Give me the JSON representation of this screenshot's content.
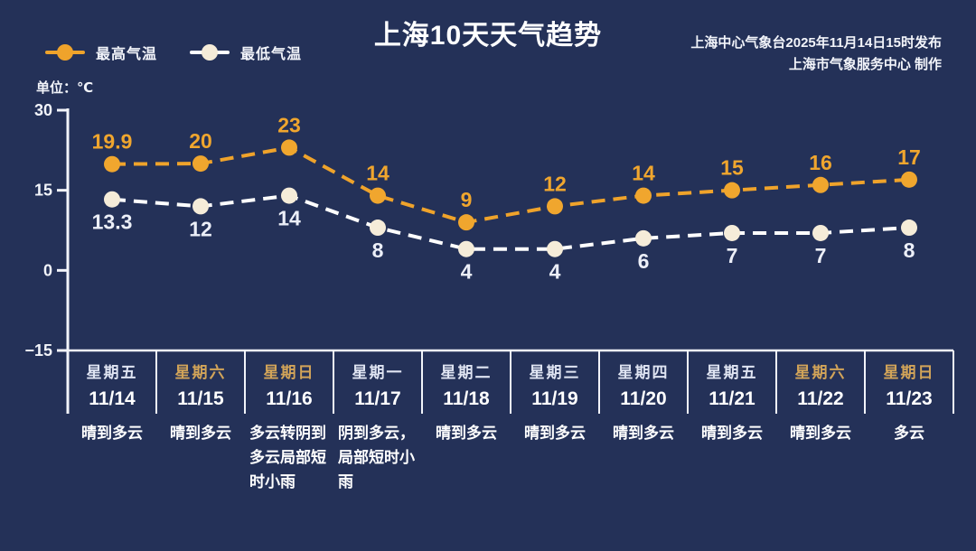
{
  "title": "上海10天天气趋势",
  "credits": {
    "line1": "上海中心气象台2025年11月14日15时发布",
    "line2": "上海市气象服务中心  制作"
  },
  "unit_label": "单位：℃",
  "legend": {
    "high": {
      "label": "最高气温",
      "color": "#efa32b"
    },
    "low": {
      "label": "最低气温",
      "color": "#ffffff",
      "dot_color": "#f5ecd9"
    }
  },
  "chart_data": {
    "type": "line",
    "title": "上海10天天气趋势",
    "xlabel": "",
    "ylabel": "单位：℃",
    "categories": [
      "11/14",
      "11/15",
      "11/16",
      "11/17",
      "11/18",
      "11/19",
      "11/20",
      "11/21",
      "11/22",
      "11/23"
    ],
    "series": [
      {
        "name": "最高气温",
        "values": [
          19.9,
          20,
          23,
          14,
          9,
          12,
          14,
          15,
          16,
          17
        ],
        "color": "#efa32b",
        "dot_color": "#f0a62e",
        "label_color": "#f0a62e",
        "label_position": "above"
      },
      {
        "name": "最低气温",
        "values": [
          13.3,
          12,
          14,
          8,
          4,
          4,
          6,
          7,
          7,
          8
        ],
        "color": "#ffffff",
        "dot_color": "#f5ecd9",
        "label_color": "#eceff8",
        "label_position": "below"
      }
    ],
    "ylim": [
      -15,
      30
    ],
    "yticks": [
      30,
      15,
      0,
      -15
    ],
    "grid": false,
    "line_style": "dashed",
    "legend_position": "top-left"
  },
  "days": [
    {
      "weekday": "星期五",
      "date": "11/14",
      "weather": "晴到多云",
      "weekend": false
    },
    {
      "weekday": "星期六",
      "date": "11/15",
      "weather": "晴到多云",
      "weekend": true
    },
    {
      "weekday": "星期日",
      "date": "11/16",
      "weather": "多云转阴到多云局部短时小雨",
      "weekend": true
    },
    {
      "weekday": "星期一",
      "date": "11/17",
      "weather": "阴到多云，局部短时小雨",
      "weekend": false
    },
    {
      "weekday": "星期二",
      "date": "11/18",
      "weather": "晴到多云",
      "weekend": false
    },
    {
      "weekday": "星期三",
      "date": "11/19",
      "weather": "晴到多云",
      "weekend": false
    },
    {
      "weekday": "星期四",
      "date": "11/20",
      "weather": "晴到多云",
      "weekend": false
    },
    {
      "weekday": "星期五",
      "date": "11/21",
      "weather": "晴到多云",
      "weekend": false
    },
    {
      "weekday": "星期六",
      "date": "11/22",
      "weather": "晴到多云",
      "weekend": true
    },
    {
      "weekday": "星期日",
      "date": "11/23",
      "weather": "多云",
      "weekend": true
    }
  ]
}
